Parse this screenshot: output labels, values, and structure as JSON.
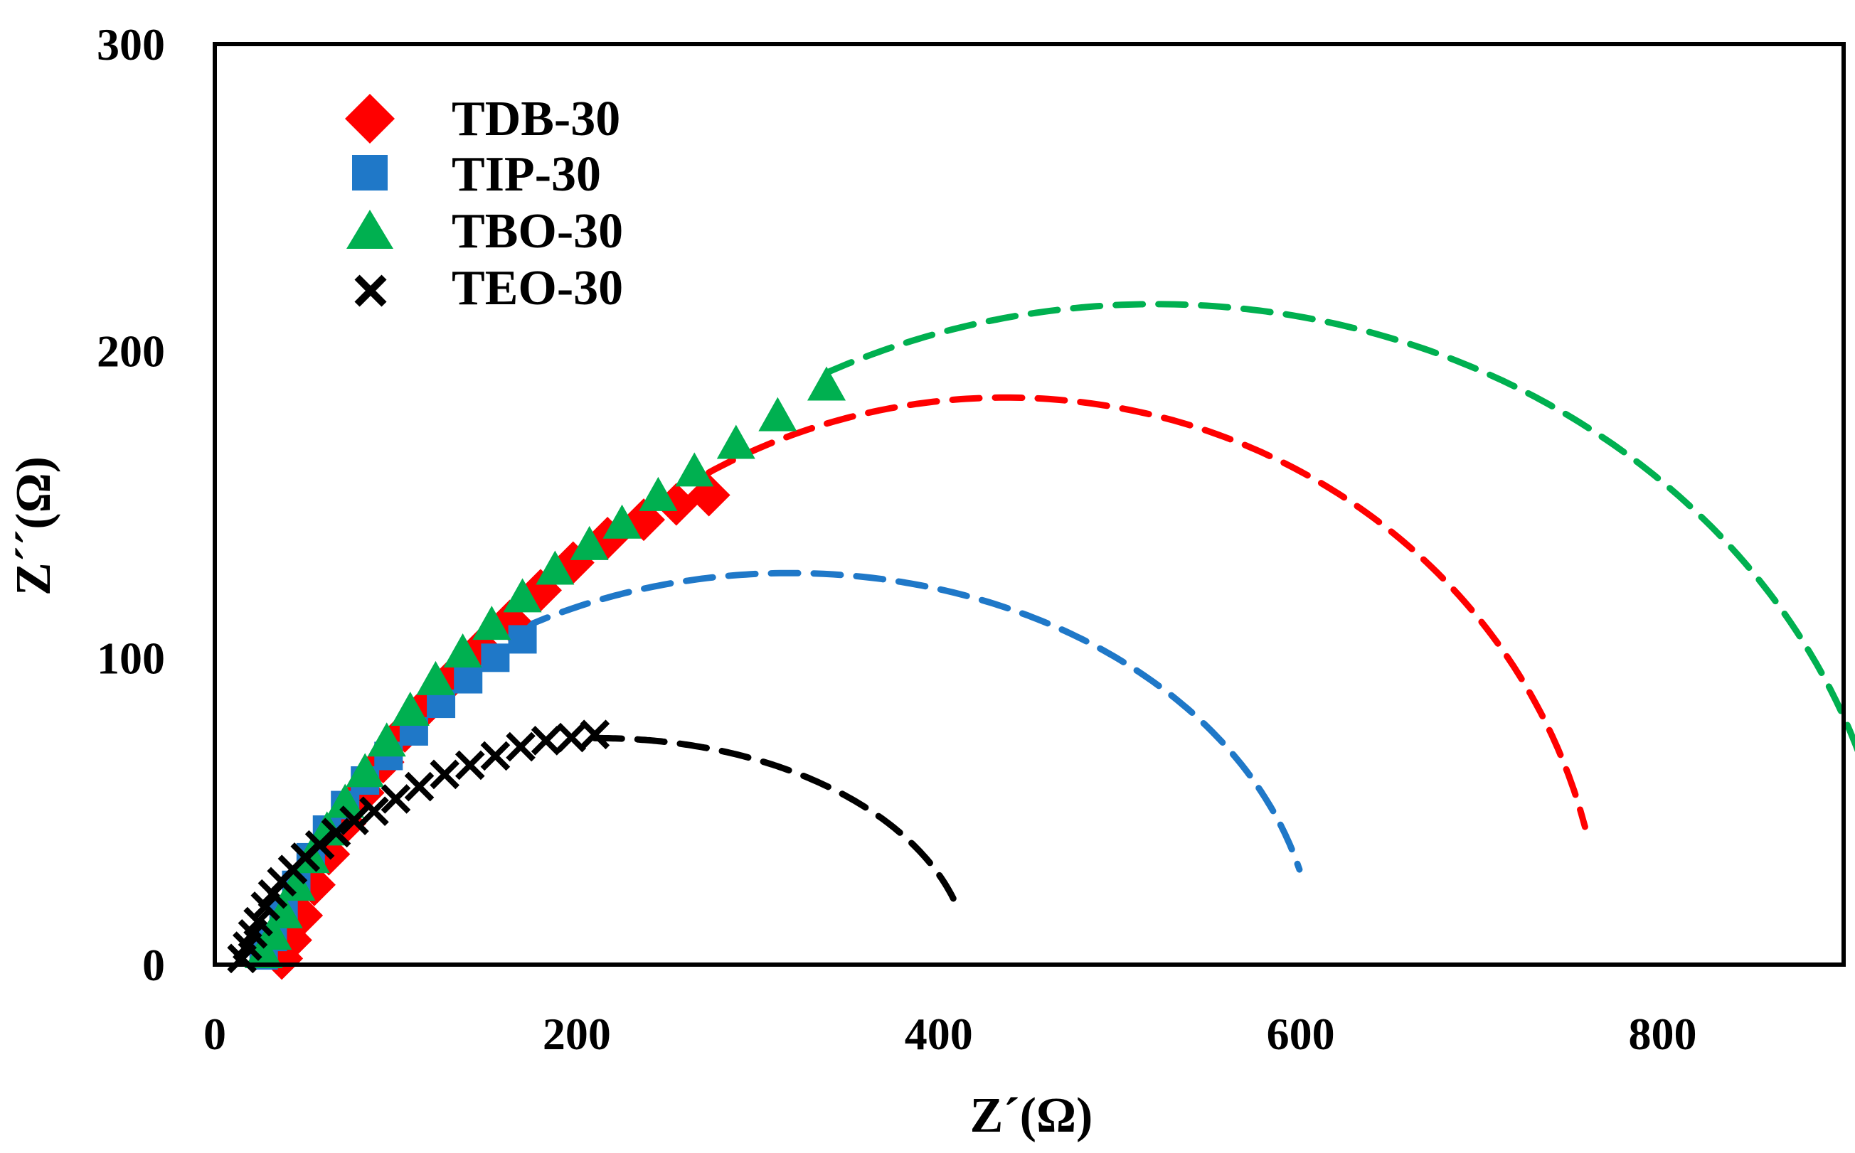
{
  "chart_data": {
    "type": "scatter",
    "title": "",
    "xlabel": "Z´(Ω)",
    "ylabel": "Z´´(Ω)",
    "xlim": [
      0,
      900
    ],
    "ylim": [
      0,
      300
    ],
    "xticks": [
      "0",
      "200",
      "400",
      "600",
      "800"
    ],
    "yticks": [
      "0",
      "100",
      "200",
      "300"
    ],
    "legend_position": "top-left",
    "series": [
      {
        "name": "TDB-30",
        "marker": "diamond",
        "color": "#ff0000",
        "points": [
          [
            37,
            2
          ],
          [
            42,
            8
          ],
          [
            48,
            16
          ],
          [
            55,
            26
          ],
          [
            63,
            36
          ],
          [
            72,
            46
          ],
          [
            82,
            56
          ],
          [
            93,
            66
          ],
          [
            105,
            76
          ],
          [
            118,
            85
          ],
          [
            132,
            94
          ],
          [
            147,
            103
          ],
          [
            163,
            112
          ],
          [
            180,
            122
          ],
          [
            198,
            131
          ],
          [
            217,
            139
          ],
          [
            237,
            145
          ],
          [
            255,
            150
          ],
          [
            273,
            153
          ]
        ],
        "fit_curve": {
          "center_x": 437,
          "radius": 330,
          "scale_y": 0.56
        }
      },
      {
        "name": "TIP-30",
        "marker": "square",
        "color": "#1f78c8",
        "points": [
          [
            27,
            3
          ],
          [
            32,
            9
          ],
          [
            38,
            17
          ],
          [
            45,
            26
          ],
          [
            53,
            35
          ],
          [
            62,
            44
          ],
          [
            72,
            52
          ],
          [
            83,
            60
          ],
          [
            96,
            68
          ],
          [
            110,
            76
          ],
          [
            125,
            85
          ],
          [
            140,
            93
          ],
          [
            155,
            100
          ],
          [
            170,
            106
          ]
        ],
        "fit_curve": {
          "center_x": 318,
          "radius": 290,
          "scale_y": 0.44
        }
      },
      {
        "name": "TBO-30",
        "marker": "triangle",
        "color": "#00b050",
        "points": [
          [
            27,
            3
          ],
          [
            32,
            9
          ],
          [
            38,
            16
          ],
          [
            45,
            25
          ],
          [
            53,
            34
          ],
          [
            62,
            43
          ],
          [
            72,
            52
          ],
          [
            83,
            62
          ],
          [
            95,
            72
          ],
          [
            108,
            82
          ],
          [
            122,
            92
          ],
          [
            137,
            101
          ],
          [
            153,
            110
          ],
          [
            170,
            119
          ],
          [
            188,
            128
          ],
          [
            207,
            136
          ],
          [
            225,
            143
          ],
          [
            245,
            152
          ],
          [
            265,
            160
          ],
          [
            288,
            169
          ],
          [
            311,
            178
          ],
          [
            338,
            188
          ]
        ],
        "fit_curve": {
          "center_x": 520,
          "radius": 410,
          "scale_y": 0.525
        }
      },
      {
        "name": "TEO-30",
        "marker": "cross",
        "color": "#000000",
        "points": [
          [
            15,
            2
          ],
          [
            18,
            6
          ],
          [
            21,
            10
          ],
          [
            24,
            14
          ],
          [
            28,
            19
          ],
          [
            32,
            23
          ],
          [
            37,
            27
          ],
          [
            43,
            31
          ],
          [
            50,
            35
          ],
          [
            58,
            39
          ],
          [
            67,
            43
          ],
          [
            77,
            47
          ],
          [
            88,
            50
          ],
          [
            100,
            54
          ],
          [
            113,
            58
          ],
          [
            127,
            62
          ],
          [
            141,
            65
          ],
          [
            155,
            68
          ],
          [
            169,
            71
          ],
          [
            183,
            73
          ],
          [
            197,
            74
          ],
          [
            210,
            75
          ]
        ],
        "fit_curve": {
          "center_x": 212,
          "radius": 205,
          "scale_y": 0.36
        }
      }
    ]
  }
}
